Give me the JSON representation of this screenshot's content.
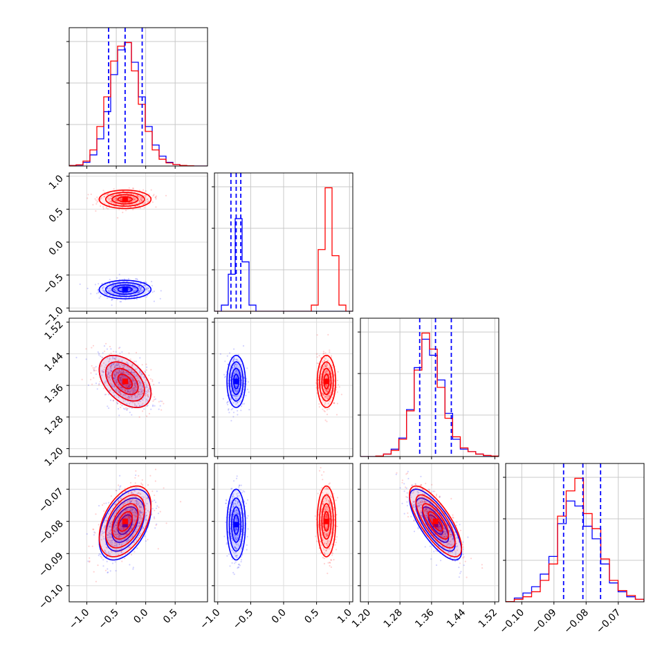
{
  "chart_data": {
    "type": "scatter",
    "title": "",
    "grid": true,
    "colors": {
      "series_a": "#0000ff",
      "series_b": "#ff0000"
    },
    "series": [
      {
        "color": "#0000ff",
        "means": [
          -0.35,
          -0.72,
          1.37,
          -0.081
        ],
        "sigmas": [
          0.22,
          0.07,
          0.033,
          0.0055
        ],
        "quantiles": [
          [
            -0.63,
            -0.35,
            -0.06
          ],
          [
            -0.8,
            -0.72,
            -0.65
          ],
          [
            1.33,
            1.37,
            1.41
          ],
          [
            -0.087,
            -0.081,
            -0.0755
          ]
        ]
      },
      {
        "color": "#ff0000",
        "means": [
          -0.35,
          0.65,
          1.37,
          -0.08
        ],
        "sigmas": [
          0.22,
          0.07,
          0.033,
          0.0055
        ]
      }
    ],
    "correlations": {
      "0-2": -0.45,
      "0-3": 0.45,
      "2-3": -0.75
    },
    "params": [
      {
        "range": [
          -1.3,
          1.05
        ],
        "ticks": [
          -1.0,
          -0.5,
          0.0,
          0.5
        ],
        "tick_labels": [
          "−1.0",
          "−0.5",
          "0.0",
          "0.5"
        ],
        "hist_a": [
          0.004,
          0.008,
          0.03,
          0.09,
          0.22,
          0.44,
          0.74,
          0.94,
          1.0,
          0.84,
          0.56,
          0.32,
          0.17,
          0.08,
          0.03,
          0.012,
          0.004,
          0.001,
          0,
          0
        ],
        "hist_b": [
          0.004,
          0.01,
          0.04,
          0.13,
          0.32,
          0.56,
          0.85,
          0.97,
          1.0,
          0.77,
          0.5,
          0.28,
          0.13,
          0.055,
          0.025,
          0.012,
          0.005,
          0.002,
          0,
          0
        ]
      },
      {
        "range": [
          -1.05,
          1.05
        ],
        "ticks": [
          -1.0,
          -0.5,
          0.0,
          0.5,
          1.0
        ],
        "tick_labels": [
          "−1.0",
          "−0.5",
          "0.0",
          "0.5",
          "1.0"
        ],
        "hist_a": [
          0,
          0.05,
          0.3,
          0.75,
          0.4,
          0.05,
          0,
          0,
          0,
          0,
          0,
          0,
          0,
          0,
          0,
          0,
          0,
          0,
          0,
          0
        ],
        "hist_b": [
          0,
          0,
          0,
          0,
          0,
          0,
          0,
          0,
          0,
          0,
          0,
          0,
          0,
          0,
          0.05,
          0.5,
          1.0,
          0.45,
          0.05,
          0
        ]
      },
      {
        "range": [
          1.18,
          1.53
        ],
        "ticks": [
          1.2,
          1.28,
          1.36,
          1.44,
          1.52
        ],
        "tick_labels": [
          "1.20",
          "1.28",
          "1.36",
          "1.44",
          "1.52"
        ],
        "hist_a": [
          0,
          0,
          0.003,
          0.02,
          0.06,
          0.15,
          0.38,
          0.72,
          0.95,
          0.82,
          0.62,
          0.35,
          0.14,
          0.06,
          0.04,
          0.02,
          0.008,
          0.003
        ],
        "hist_b": [
          0,
          0,
          0.004,
          0.02,
          0.05,
          0.14,
          0.37,
          0.7,
          1.0,
          0.87,
          0.56,
          0.31,
          0.16,
          0.07,
          0.04,
          0.02,
          0.009,
          0.004
        ]
      },
      {
        "range": [
          -0.105,
          -0.062
        ],
        "ticks": [
          -0.1,
          -0.09,
          -0.08,
          -0.07
        ],
        "tick_labels": [
          "−0.10",
          "−0.09",
          "−0.08",
          "−0.07"
        ],
        "hist_a": [
          0.002,
          0.03,
          0.07,
          0.12,
          0.22,
          0.36,
          0.62,
          0.8,
          0.76,
          0.6,
          0.5,
          0.3,
          0.15,
          0.08,
          0.04,
          0.02
        ],
        "hist_b": [
          0.002,
          0.02,
          0.04,
          0.08,
          0.17,
          0.3,
          0.68,
          0.88,
          0.98,
          0.7,
          0.58,
          0.34,
          0.17,
          0.09,
          0.05,
          0.02
        ]
      }
    ]
  }
}
